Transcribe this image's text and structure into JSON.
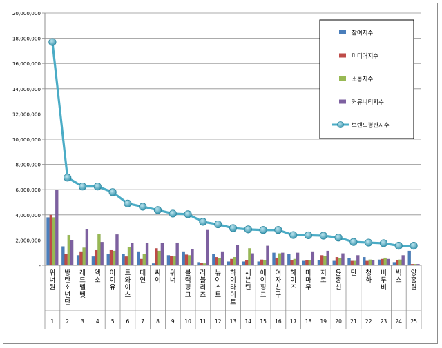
{
  "chart_data": {
    "type": "bar",
    "title": "",
    "xlabel": "",
    "ylabel": "",
    "ylim": [
      0,
      20000000
    ],
    "yticks": [
      "-",
      "2,000,000",
      "4,000,000",
      "6,000,000",
      "8,000,000",
      "10,000,000",
      "12,000,000",
      "14,000,000",
      "16,000,000",
      "18,000,000",
      "20,000,000"
    ],
    "grid": true,
    "legend_position": "top-right",
    "categories": [
      "워너원",
      "방탄소년단",
      "레드벨벳",
      "엑소",
      "아이유",
      "트와이스",
      "태연",
      "싸이",
      "위너",
      "블랙핑크",
      "러블리즈",
      "뉴이스트",
      "하이라이트",
      "세븐틴",
      "에이핑크",
      "여자친구",
      "헤이즈",
      "마마무",
      "지코",
      "윤종신",
      "딘",
      "청하",
      "비투비",
      "빅스",
      "양홍원"
    ],
    "ranks": [
      "1",
      "2",
      "3",
      "4",
      "5",
      "6",
      "7",
      "8",
      "9",
      "10",
      "11",
      "12",
      "13",
      "14",
      "15",
      "16",
      "17",
      "18",
      "19",
      "20",
      "21",
      "22",
      "23",
      "24",
      "25"
    ],
    "series": [
      {
        "name": "참여지수",
        "kind": "bar",
        "color": "#4a7ebb",
        "values": [
          3800000,
          1500000,
          800000,
          700000,
          900000,
          900000,
          1100000,
          150000,
          800000,
          1100000,
          250000,
          900000,
          300000,
          300000,
          300000,
          1000000,
          900000,
          350000,
          400000,
          350000,
          550000,
          650000,
          450000,
          250000,
          1150000
        ]
      },
      {
        "name": "미디어지수",
        "kind": "bar",
        "color": "#be4b48",
        "values": [
          4000000,
          900000,
          1100000,
          1200000,
          1200000,
          700000,
          500000,
          1350000,
          750000,
          850000,
          200000,
          650000,
          500000,
          400000,
          450000,
          600000,
          400000,
          400000,
          800000,
          650000,
          350000,
          350000,
          500000,
          400000,
          100000
        ]
      },
      {
        "name": "소통지수",
        "kind": "bar",
        "color": "#98b954",
        "values": [
          3800000,
          2400000,
          1400000,
          2500000,
          1150000,
          1450000,
          900000,
          1150000,
          700000,
          800000,
          150000,
          550000,
          650000,
          1350000,
          400000,
          950000,
          500000,
          400000,
          750000,
          550000,
          350000,
          450000,
          600000,
          450000,
          100000
        ]
      },
      {
        "name": "커뮤니티지수",
        "kind": "bar",
        "color": "#7d60a0",
        "values": [
          6000000,
          2000000,
          2850000,
          1850000,
          2450000,
          1750000,
          1750000,
          1750000,
          1800000,
          1300000,
          2800000,
          1100000,
          1600000,
          950000,
          1550000,
          1000000,
          1000000,
          1100000,
          1150000,
          950000,
          800000,
          400000,
          500000,
          800000,
          100000
        ]
      },
      {
        "name": "브랜드평판지수",
        "kind": "line",
        "color": "#4bacc6",
        "values": [
          17700000,
          6950000,
          6250000,
          6250000,
          5800000,
          4900000,
          4650000,
          4380000,
          4100000,
          4050000,
          3450000,
          3250000,
          2950000,
          2850000,
          2800000,
          2800000,
          2400000,
          2380000,
          2350000,
          2200000,
          1850000,
          1800000,
          1750000,
          1550000,
          1550000
        ]
      }
    ]
  }
}
